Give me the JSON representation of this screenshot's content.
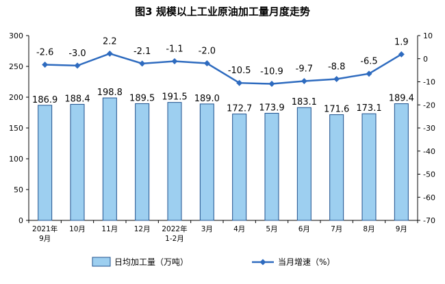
{
  "chart_data": {
    "type": "bar",
    "title": "图3 规模以上工业原油加工量月度走势",
    "categories": [
      [
        "2021年",
        "9月"
      ],
      [
        "10月"
      ],
      [
        "11月"
      ],
      [
        "12月"
      ],
      [
        "2022年",
        "1-2月"
      ],
      [
        "3月"
      ],
      [
        "4月"
      ],
      [
        "5月"
      ],
      [
        "6月"
      ],
      [
        "7月"
      ],
      [
        "8月"
      ],
      [
        "9月"
      ]
    ],
    "series": [
      {
        "name": "日均加工量（万吨）",
        "type": "bar",
        "axis": "left",
        "values": [
          186.9,
          188.4,
          198.8,
          189.5,
          191.5,
          189.0,
          172.7,
          173.9,
          183.1,
          171.6,
          173.1,
          189.4
        ],
        "labels": [
          "186.9",
          "188.4",
          "198.8",
          "189.5",
          "191.5",
          "189.0",
          "172.7",
          "173.9",
          "183.1",
          "171.6",
          "173.1",
          "189.4"
        ]
      },
      {
        "name": "当月增速（%）",
        "type": "line",
        "axis": "right",
        "values": [
          -2.6,
          -3.0,
          2.2,
          -2.1,
          -1.1,
          -2.0,
          -10.5,
          -10.9,
          -9.7,
          -8.8,
          -6.5,
          1.9
        ],
        "labels": [
          "-2.6",
          "-3.0",
          "2.2",
          "-2.1",
          "-1.1",
          "-2.0",
          "-10.5",
          "-10.9",
          "-9.7",
          "-8.8",
          "-6.5",
          "1.9"
        ]
      }
    ],
    "left_axis": {
      "min": 0,
      "max": 300,
      "ticks": [
        0,
        50,
        100,
        150,
        200,
        250,
        300
      ]
    },
    "right_axis": {
      "min": -70,
      "max": 10,
      "ticks": [
        10,
        0,
        -10,
        -20,
        -30,
        -40,
        -50,
        -60,
        -70
      ]
    },
    "grid": false,
    "legend_position": "bottom",
    "colors": {
      "bar_fill": "#9dcff0",
      "bar_stroke": "#1d4f8c",
      "line": "#2e6bbf",
      "axis": "#000000"
    }
  }
}
